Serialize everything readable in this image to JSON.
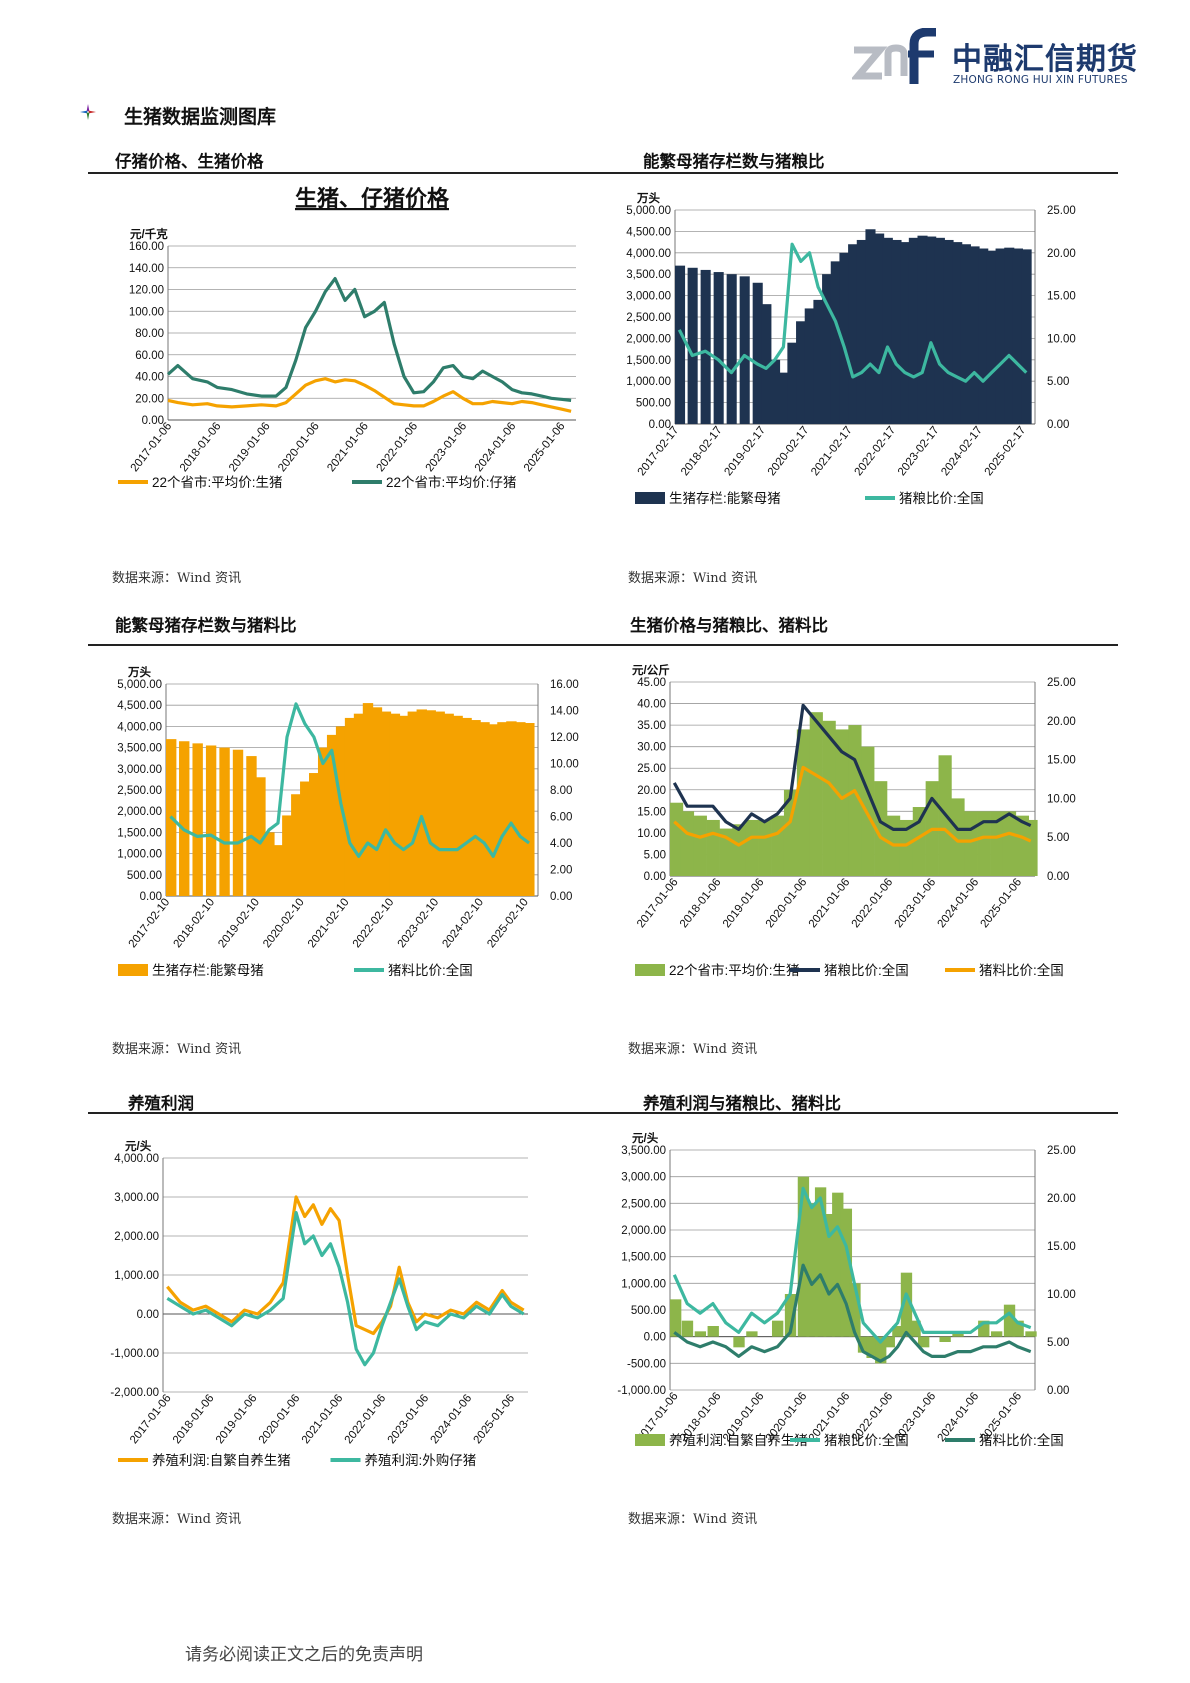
{
  "header": {
    "logo_text": "中融汇信期货",
    "logo_sub": "ZHONG RONG HUI XIN FUTURES",
    "logo_mark": "znf",
    "section_title": "生猪数据监测图库"
  },
  "colors": {
    "orange": "#F5A200",
    "teal_dark": "#2E7D6B",
    "teal_light": "#3DB8A0",
    "navy": "#1E3350",
    "olive": "#8DB54A",
    "logo_navy": "#1D3A6E",
    "logo_grey": "#B8BCC4"
  },
  "panels": [
    {
      "title": "仔猪价格、生猪价格",
      "source": "数据来源：Wind 资讯"
    },
    {
      "title": "能繁母猪存栏数与猪粮比",
      "source": "数据来源：Wind 资讯"
    },
    {
      "title": "能繁母猪存栏数与猪料比",
      "source": "数据来源：Wind 资讯"
    },
    {
      "title": "生猪价格与猪粮比、猪料比",
      "source": "数据来源：Wind 资讯"
    },
    {
      "title": "养殖利润",
      "source": "数据来源：Wind 资讯"
    },
    {
      "title": "养殖利润与猪粮比、猪料比",
      "source": "数据来源：Wind 资讯"
    }
  ],
  "footer": {
    "text": "请务必阅读正文之后的免责声明"
  },
  "chart_data": [
    {
      "type": "line",
      "title": "生猪、仔猪价格",
      "ylabel": "元/千克",
      "ylim": [
        0,
        160
      ],
      "yticks": [
        "0.00",
        "20.00",
        "40.00",
        "60.00",
        "80.00",
        "100.00",
        "120.00",
        "140.00",
        "160.00"
      ],
      "xticks": [
        "2017-01-06",
        "2018-01-06",
        "2019-01-06",
        "2020-01-06",
        "2021-01-06",
        "2022-01-06",
        "2023-01-06",
        "2024-01-06",
        "2025-01-06"
      ],
      "x": [
        2017.0,
        2017.2,
        2017.5,
        2017.8,
        2018.0,
        2018.3,
        2018.6,
        2018.9,
        2019.2,
        2019.4,
        2019.6,
        2019.8,
        2020.0,
        2020.2,
        2020.4,
        2020.6,
        2020.8,
        2021.0,
        2021.2,
        2021.4,
        2021.6,
        2021.8,
        2022.0,
        2022.2,
        2022.4,
        2022.6,
        2022.8,
        2023.0,
        2023.2,
        2023.4,
        2023.6,
        2023.8,
        2024.0,
        2024.2,
        2024.4,
        2024.6,
        2024.8,
        2025.0,
        2025.2
      ],
      "series": [
        {
          "name": "22个省市:平均价:生猪",
          "color": "#F5A200",
          "values": [
            18,
            16,
            14,
            15,
            13,
            12,
            13,
            14,
            13,
            16,
            24,
            32,
            36,
            38,
            35,
            37,
            36,
            32,
            27,
            21,
            15,
            14,
            13,
            13,
            17,
            22,
            26,
            20,
            15,
            15,
            17,
            16,
            15,
            17,
            16,
            14,
            12,
            10,
            8
          ]
        },
        {
          "name": "22个省市:平均价:仔猪",
          "color": "#2E7D6B",
          "values": [
            42,
            50,
            38,
            35,
            30,
            28,
            24,
            22,
            22,
            30,
            55,
            85,
            100,
            118,
            130,
            110,
            120,
            95,
            100,
            108,
            70,
            40,
            25,
            26,
            35,
            48,
            50,
            40,
            38,
            45,
            40,
            35,
            28,
            25,
            24,
            22,
            20,
            19,
            18
          ]
        }
      ]
    },
    {
      "type": "bar+line",
      "ylabel": "万头",
      "ylim": [
        0,
        5000
      ],
      "y2lim": [
        0,
        25
      ],
      "yticks": [
        "0.00",
        "500.00",
        "1,000.00",
        "1,500.00",
        "2,000.00",
        "2,500.00",
        "3,000.00",
        "3,500.00",
        "4,000.00",
        "4,500.00",
        "5,000.00"
      ],
      "y2ticks": [
        "0.00",
        "5.00",
        "10.00",
        "15.00",
        "20.00",
        "25.00"
      ],
      "xticks": [
        "2017-02-17",
        "2018-02-17",
        "2019-02-17",
        "2020-02-17",
        "2021-02-17",
        "2022-02-17",
        "2023-02-17",
        "2024-02-17",
        "2025-02-17"
      ],
      "x": [
        2017.1,
        2017.4,
        2017.7,
        2018.0,
        2018.3,
        2018.6,
        2018.9,
        2019.1,
        2019.3,
        2019.5,
        2019.7,
        2019.9,
        2020.1,
        2020.3,
        2020.5,
        2020.7,
        2020.9,
        2021.1,
        2021.3,
        2021.5,
        2021.7,
        2021.9,
        2022.1,
        2022.3,
        2022.5,
        2022.7,
        2022.9,
        2023.1,
        2023.3,
        2023.5,
        2023.7,
        2023.9,
        2024.1,
        2024.3,
        2024.5,
        2024.7,
        2024.9,
        2025.1
      ],
      "series": [
        {
          "name": "生猪存栏:能繁母猪",
          "type": "bar",
          "color": "#1E3350",
          "values": [
            3700,
            3650,
            3600,
            3550,
            3500,
            3450,
            3300,
            2800,
            1500,
            1200,
            1900,
            2400,
            2700,
            2900,
            3500,
            3800,
            4000,
            4200,
            4300,
            4550,
            4450,
            4350,
            4300,
            4250,
            4350,
            4400,
            4380,
            4350,
            4300,
            4250,
            4200,
            4150,
            4100,
            4050,
            4100,
            4120,
            4100,
            4080
          ]
        },
        {
          "name": "猪粮比价:全国",
          "type": "line",
          "color": "#3DB8A0",
          "values": [
            11,
            8,
            8.5,
            7.5,
            6,
            8,
            7,
            6.5,
            7.5,
            9,
            21,
            19,
            20,
            16,
            14,
            12,
            9,
            5.5,
            6,
            7,
            6,
            9,
            7,
            6,
            5.5,
            6,
            9.5,
            7,
            6,
            5.5,
            5,
            6,
            5,
            6,
            7,
            8,
            7,
            6
          ]
        }
      ]
    },
    {
      "type": "bar+line",
      "ylabel": "万头",
      "ylim": [
        0,
        5000
      ],
      "y2lim": [
        0,
        16
      ],
      "yticks": [
        "0.00",
        "500.00",
        "1,000.00",
        "1,500.00",
        "2,000.00",
        "2,500.00",
        "3,000.00",
        "3,500.00",
        "4,000.00",
        "4,500.00",
        "5,000.00"
      ],
      "y2ticks": [
        "0.00",
        "2.00",
        "4.00",
        "6.00",
        "8.00",
        "10.00",
        "12.00",
        "14.00",
        "16.00"
      ],
      "xticks": [
        "2017-02-10",
        "2018-02-10",
        "2019-02-10",
        "2020-02-10",
        "2021-02-10",
        "2022-02-10",
        "2023-02-10",
        "2024-02-10",
        "2025-02-10"
      ],
      "x": [
        2017.1,
        2017.4,
        2017.7,
        2018.0,
        2018.3,
        2018.6,
        2018.9,
        2019.1,
        2019.3,
        2019.5,
        2019.7,
        2019.9,
        2020.1,
        2020.3,
        2020.5,
        2020.7,
        2020.9,
        2021.1,
        2021.3,
        2021.5,
        2021.7,
        2021.9,
        2022.1,
        2022.3,
        2022.5,
        2022.7,
        2022.9,
        2023.1,
        2023.3,
        2023.5,
        2023.7,
        2023.9,
        2024.1,
        2024.3,
        2024.5,
        2024.7,
        2024.9,
        2025.1
      ],
      "series": [
        {
          "name": "生猪存栏:能繁母猪",
          "type": "bar",
          "color": "#F5A200",
          "values": [
            3700,
            3650,
            3600,
            3550,
            3500,
            3450,
            3300,
            2800,
            1500,
            1200,
            1900,
            2400,
            2700,
            2900,
            3500,
            3800,
            4000,
            4200,
            4300,
            4550,
            4450,
            4350,
            4300,
            4250,
            4350,
            4400,
            4380,
            4350,
            4300,
            4250,
            4200,
            4150,
            4100,
            4050,
            4100,
            4120,
            4100,
            4080
          ]
        },
        {
          "name": "猪料比价:全国",
          "type": "line",
          "color": "#3DB8A0",
          "values": [
            6,
            5,
            4.5,
            4.6,
            4,
            4,
            4.5,
            4,
            5,
            5.5,
            12,
            14.5,
            13,
            12,
            10,
            11,
            7,
            4,
            3,
            4,
            3.5,
            5,
            4,
            3.5,
            4,
            6,
            4,
            3.5,
            3.5,
            3.5,
            4,
            4.5,
            4,
            3,
            4.5,
            5.5,
            4.5,
            4
          ]
        }
      ]
    },
    {
      "type": "bar+line",
      "ylabel": "元/公斤",
      "ylim": [
        0,
        45
      ],
      "y2lim": [
        0,
        25
      ],
      "yticks": [
        "0.00",
        "5.00",
        "10.00",
        "15.00",
        "20.00",
        "25.00",
        "30.00",
        "35.00",
        "40.00",
        "45.00"
      ],
      "y2ticks": [
        "0.00",
        "5.00",
        "10.00",
        "15.00",
        "20.00",
        "25.00"
      ],
      "xticks": [
        "2017-01-06",
        "2018-01-06",
        "2019-01-06",
        "2020-01-06",
        "2021-01-06",
        "2022-01-06",
        "2023-01-06",
        "2024-01-06",
        "2025-01-06"
      ],
      "x": [
        2017.0,
        2017.3,
        2017.6,
        2017.9,
        2018.2,
        2018.5,
        2018.8,
        2019.1,
        2019.4,
        2019.7,
        2020.0,
        2020.3,
        2020.6,
        2020.9,
        2021.2,
        2021.5,
        2021.8,
        2022.1,
        2022.4,
        2022.7,
        2023.0,
        2023.3,
        2023.6,
        2023.9,
        2024.2,
        2024.5,
        2024.8,
        2025.1,
        2025.3
      ],
      "series": [
        {
          "name": "22个省市:平均价:生猪",
          "type": "bar",
          "color": "#8DB54A",
          "values": [
            17,
            15,
            14,
            13,
            11,
            12,
            13,
            13,
            14,
            20,
            34,
            38,
            36,
            34,
            35,
            30,
            22,
            14,
            13,
            16,
            22,
            28,
            18,
            15,
            15,
            15,
            15,
            14,
            13
          ]
        },
        {
          "name": "猪粮比价:全国",
          "type": "line",
          "color": "#1E3350",
          "values": [
            12,
            9,
            9,
            9,
            7,
            6,
            8,
            7,
            8,
            10,
            22,
            20,
            18,
            16,
            15,
            11,
            7,
            6,
            6,
            7,
            10,
            8,
            6,
            6,
            7,
            7,
            8,
            7,
            6.5
          ]
        },
        {
          "name": "猪料比价:全国",
          "type": "line",
          "color": "#F5A200",
          "values": [
            7,
            5.5,
            5,
            5.5,
            5,
            4,
            5,
            5,
            5.5,
            7,
            14,
            13,
            12,
            10,
            11,
            8,
            5,
            4,
            4,
            5,
            6,
            6,
            4.5,
            4.5,
            5,
            5,
            5.5,
            5,
            4.5
          ]
        }
      ]
    },
    {
      "type": "line",
      "ylabel": "元/头",
      "ylim": [
        -2000,
        4000
      ],
      "yticks": [
        "-2,000.00",
        "-1,000.00",
        "0.00",
        "1,000.00",
        "2,000.00",
        "3,000.00",
        "4,000.00"
      ],
      "xticks": [
        "2017-01-06",
        "2018-01-06",
        "2019-01-06",
        "2020-01-06",
        "2021-01-06",
        "2022-01-06",
        "2023-01-06",
        "2024-01-06",
        "2025-01-06"
      ],
      "x": [
        2017.0,
        2017.3,
        2017.6,
        2017.9,
        2018.2,
        2018.5,
        2018.8,
        2019.1,
        2019.4,
        2019.7,
        2020.0,
        2020.2,
        2020.4,
        2020.6,
        2020.8,
        2021.0,
        2021.2,
        2021.4,
        2021.6,
        2021.8,
        2022.0,
        2022.2,
        2022.4,
        2022.6,
        2022.8,
        2023.0,
        2023.3,
        2023.6,
        2023.9,
        2024.2,
        2024.5,
        2024.8,
        2025.0,
        2025.3
      ],
      "series": [
        {
          "name": "养殖利润:自繁自养生猪",
          "type": "line",
          "color": "#F5A200",
          "values": [
            700,
            300,
            100,
            200,
            0,
            -200,
            100,
            0,
            300,
            800,
            3000,
            2500,
            2800,
            2300,
            2700,
            2400,
            1000,
            -300,
            -400,
            -500,
            -200,
            200,
            1200,
            300,
            -200,
            0,
            -100,
            100,
            0,
            300,
            100,
            600,
            300,
            100
          ]
        },
        {
          "name": "养殖利润:外购仔猪",
          "type": "line",
          "color": "#3DB8A0",
          "values": [
            400,
            200,
            0,
            100,
            -100,
            -300,
            0,
            -100,
            100,
            400,
            2600,
            1800,
            2000,
            1500,
            1800,
            1200,
            300,
            -900,
            -1300,
            -1000,
            -300,
            300,
            900,
            200,
            -400,
            -200,
            -300,
            0,
            -100,
            200,
            0,
            500,
            200,
            0
          ]
        }
      ]
    },
    {
      "type": "bar+line",
      "ylabel": "元/头",
      "ylim": [
        -1000,
        3500
      ],
      "y2lim": [
        0,
        25
      ],
      "yticks": [
        "-1,000.00",
        "-500.00",
        "0.00",
        "500.00",
        "1,000.00",
        "1,500.00",
        "2,000.00",
        "2,500.00",
        "3,000.00",
        "3,500.00"
      ],
      "y2ticks": [
        "0.00",
        "5.00",
        "10.00",
        "15.00",
        "20.00",
        "25.00"
      ],
      "xticks": [
        "2017-01-06",
        "2018-01-06",
        "2019-01-06",
        "2020-01-06",
        "2021-01-06",
        "2022-01-06",
        "2023-01-06",
        "2024-01-06",
        "2025-01-06"
      ],
      "x": [
        2017.0,
        2017.3,
        2017.6,
        2017.9,
        2018.2,
        2018.5,
        2018.8,
        2019.1,
        2019.4,
        2019.7,
        2020.0,
        2020.2,
        2020.4,
        2020.6,
        2020.8,
        2021.0,
        2021.2,
        2021.4,
        2021.6,
        2021.8,
        2022.0,
        2022.2,
        2022.4,
        2022.6,
        2022.8,
        2023.0,
        2023.3,
        2023.6,
        2023.9,
        2024.2,
        2024.5,
        2024.8,
        2025.0,
        2025.3
      ],
      "series": [
        {
          "name": "养殖利润:自繁自养生猪",
          "type": "bar",
          "color": "#8DB54A",
          "values": [
            700,
            300,
            100,
            200,
            0,
            -200,
            100,
            0,
            300,
            800,
            3000,
            2500,
            2800,
            2300,
            2700,
            2400,
            1000,
            -300,
            -400,
            -500,
            -200,
            200,
            1200,
            300,
            -200,
            0,
            -100,
            100,
            0,
            300,
            100,
            600,
            300,
            100
          ]
        },
        {
          "name": "猪粮比价:全国",
          "type": "line",
          "color": "#3DB8A0",
          "values": [
            12,
            9,
            8,
            9,
            7,
            6,
            8,
            7,
            8,
            10,
            21,
            19,
            20,
            16,
            17,
            15,
            11,
            7,
            6,
            5,
            6,
            7,
            10,
            8,
            6,
            6,
            6,
            6,
            6,
            7,
            7,
            8,
            7,
            6.5
          ]
        },
        {
          "name": "猪料比价:全国",
          "type": "line",
          "color": "#2E7D6B",
          "values": [
            6,
            5,
            4.5,
            5,
            4.5,
            3.5,
            4.5,
            4,
            4.5,
            6,
            13,
            11,
            12,
            10,
            11,
            9,
            6,
            4,
            3.5,
            3,
            3.5,
            4.5,
            6,
            5,
            4,
            3.5,
            3.5,
            4,
            4,
            4.5,
            4.5,
            5,
            4.5,
            4
          ]
        }
      ]
    }
  ]
}
